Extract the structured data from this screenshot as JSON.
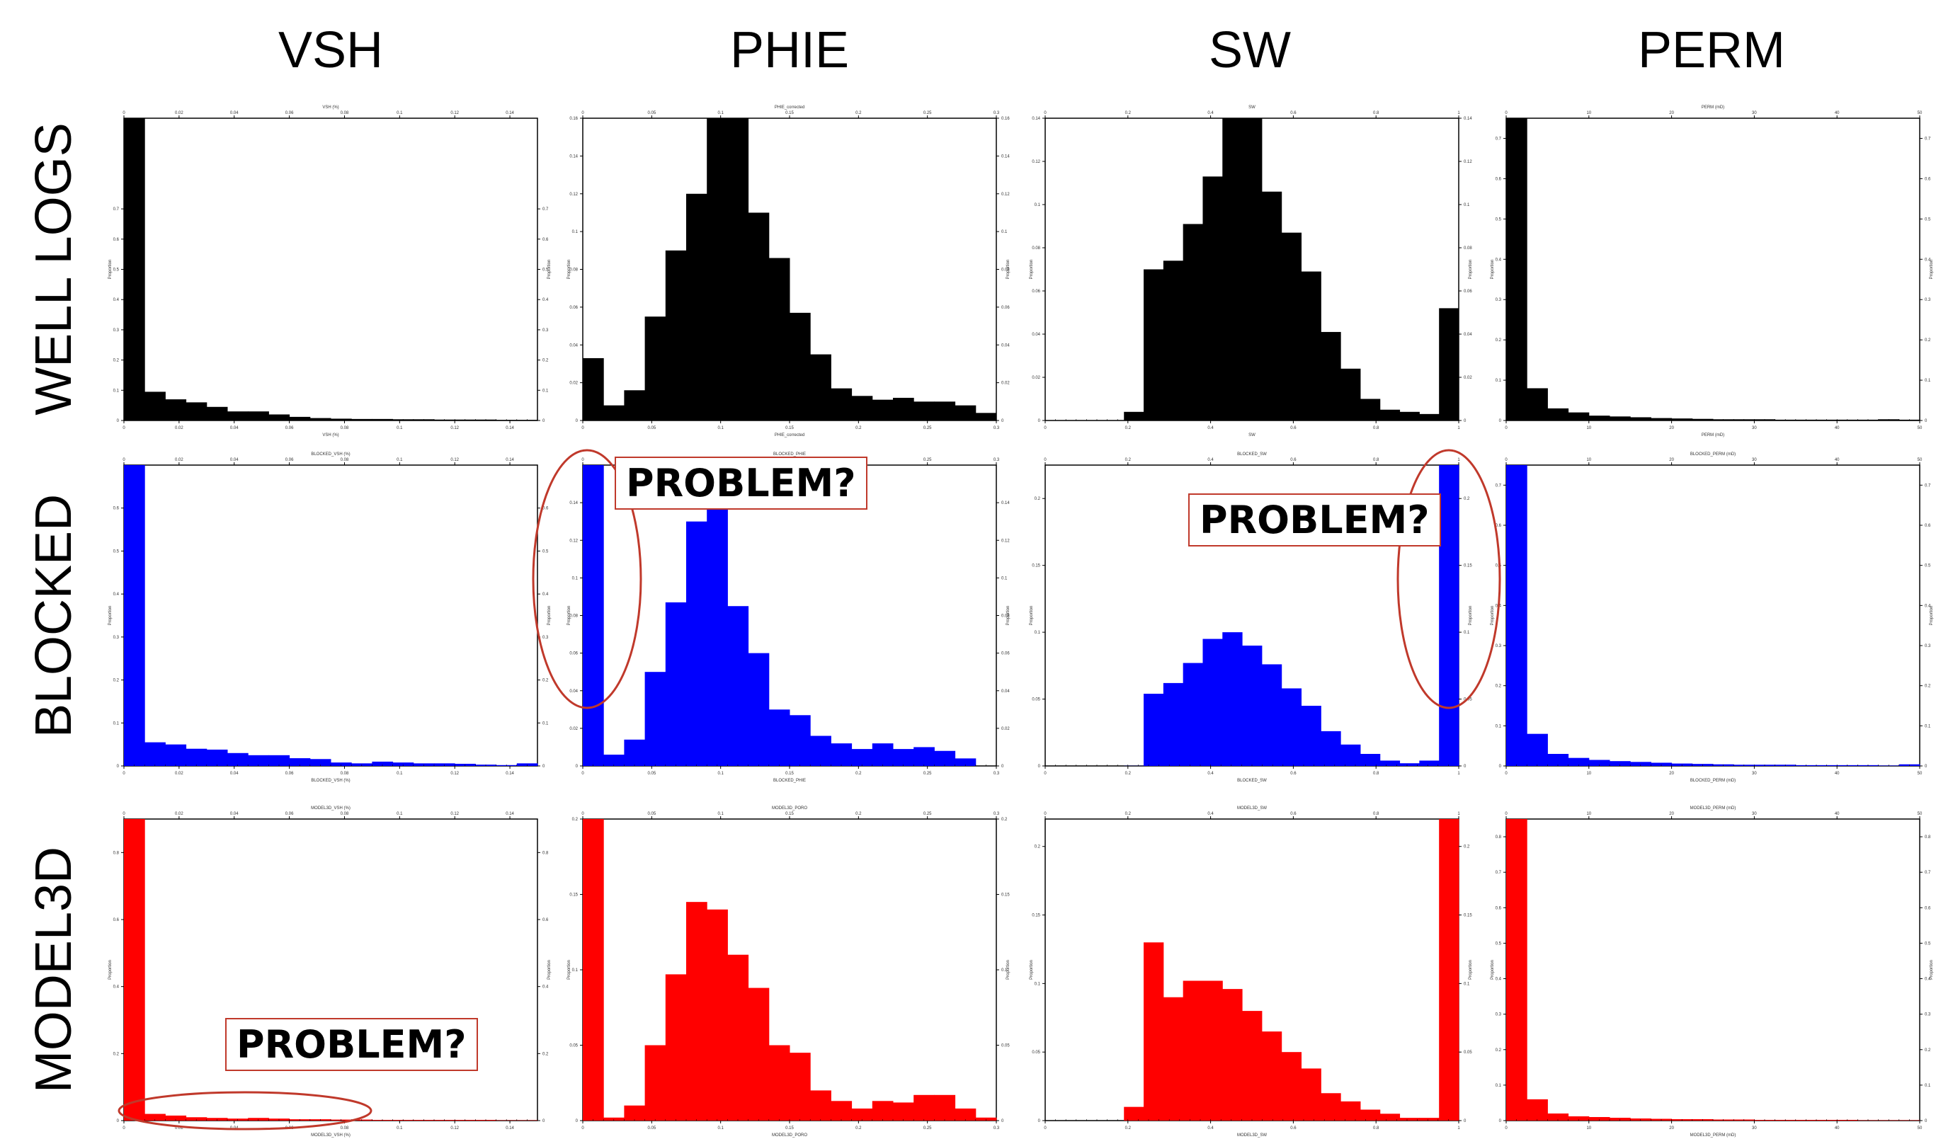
{
  "columns": [
    "VSH",
    "PHIE",
    "SW",
    "PERM"
  ],
  "rows": [
    "WELL LOGS",
    "BLOCKED",
    "MODEL3D"
  ],
  "colors": {
    "WELL LOGS": "#000000",
    "BLOCKED": "#0000ff",
    "MODEL3D": "#ff0000",
    "callout_border": "#c0392b"
  },
  "callout_text": "PROBLEM?",
  "chart_data": [
    {
      "type": "bar",
      "row": "WELL LOGS",
      "column": "VSH",
      "title": "VSH (%)",
      "xlabel": "VSH (%)",
      "ylabel": "Proportion",
      "xticks": [
        "0",
        "0.02",
        "0.04",
        "0.06",
        "0.08",
        "0.1",
        "0.12",
        "0.14"
      ],
      "xlim": [
        0,
        0.15
      ],
      "ylim": [
        0,
        1.0
      ],
      "yticks": [
        "0",
        "0.1",
        "0.2",
        "0.3",
        "0.4",
        "0.5",
        "0.6",
        "0.7"
      ],
      "values": [
        1.0,
        0.095,
        0.07,
        0.06,
        0.045,
        0.03,
        0.03,
        0.02,
        0.012,
        0.008,
        0.006,
        0.005,
        0.005,
        0.004,
        0.004,
        0.003,
        0.003,
        0.003,
        0.002,
        0.002
      ]
    },
    {
      "type": "bar",
      "row": "WELL LOGS",
      "column": "PHIE",
      "title": "PHIE_corrected",
      "xlabel": "PHIE_corrected",
      "ylabel": "Proportion",
      "xticks": [
        "0",
        "0.05",
        "0.1",
        "0.15",
        "0.2",
        "0.25",
        "0.3"
      ],
      "xlim": [
        0,
        0.3
      ],
      "ylim": [
        0,
        0.16
      ],
      "yticks": [
        "0",
        "0.02",
        "0.04",
        "0.06",
        "0.08",
        "0.1",
        "0.12",
        "0.14",
        "0.16"
      ],
      "values": [
        0.033,
        0.008,
        0.016,
        0.055,
        0.09,
        0.12,
        0.16,
        0.16,
        0.11,
        0.086,
        0.057,
        0.035,
        0.017,
        0.013,
        0.011,
        0.012,
        0.01,
        0.01,
        0.008,
        0.004
      ]
    },
    {
      "type": "bar",
      "row": "WELL LOGS",
      "column": "SW",
      "title": "SW",
      "xlabel": "SW",
      "ylabel": "Proportion",
      "xticks": [
        "0",
        "0.2",
        "0.4",
        "0.6",
        "0.8",
        "1"
      ],
      "xlim": [
        0,
        1.0
      ],
      "ylim": [
        0,
        0.14
      ],
      "yticks": [
        "0",
        "0.02",
        "0.04",
        "0.06",
        "0.08",
        "0.1",
        "0.12",
        "0.14"
      ],
      "values": [
        0,
        0,
        0,
        0,
        0.004,
        0.07,
        0.074,
        0.091,
        0.113,
        0.14,
        0.14,
        0.106,
        0.087,
        0.069,
        0.041,
        0.024,
        0.01,
        0.005,
        0.004,
        0.003,
        0.052
      ]
    },
    {
      "type": "bar",
      "row": "WELL LOGS",
      "column": "PERM",
      "title": "PERM (mD)",
      "xlabel": "PERM (mD)",
      "ylabel": "Proportion",
      "xticks": [
        "0",
        "10",
        "20",
        "30",
        "40",
        "50"
      ],
      "xlim": [
        0,
        50
      ],
      "ylim": [
        0,
        0.75
      ],
      "yticks": [
        "0",
        "0.1",
        "0.2",
        "0.3",
        "0.4",
        "0.5",
        "0.6",
        "0.7"
      ],
      "values": [
        0.75,
        0.08,
        0.03,
        0.02,
        0.012,
        0.01,
        0.008,
        0.006,
        0.005,
        0.004,
        0.003,
        0.003,
        0.003,
        0.002,
        0.002,
        0.002,
        0.002,
        0.002,
        0.003,
        0.002
      ]
    },
    {
      "type": "bar",
      "row": "BLOCKED",
      "column": "VSH",
      "title": "BLOCKED_VSH (%)",
      "xlabel": "BLOCKED_VSH (%)",
      "ylabel": "Proportion",
      "xticks": [
        "0",
        "0.02",
        "0.04",
        "0.06",
        "0.08",
        "0.1",
        "0.12",
        "0.14"
      ],
      "xlim": [
        0,
        0.15
      ],
      "ylim": [
        0,
        0.7
      ],
      "yticks": [
        "0",
        "0.1",
        "0.2",
        "0.3",
        "0.4",
        "0.5",
        "0.6"
      ],
      "values": [
        0.7,
        0.055,
        0.05,
        0.04,
        0.038,
        0.03,
        0.025,
        0.025,
        0.018,
        0.016,
        0.008,
        0.006,
        0.01,
        0.008,
        0.006,
        0.006,
        0.005,
        0.003,
        0.002,
        0.006
      ]
    },
    {
      "type": "bar",
      "row": "BLOCKED",
      "column": "PHIE",
      "title": "BLOCKED_PHIE",
      "xlabel": "BLOCKED_PHIE",
      "ylabel": "Proportion",
      "xticks": [
        "0",
        "0.05",
        "0.1",
        "0.15",
        "0.2",
        "0.25",
        "0.3"
      ],
      "xlim": [
        0,
        0.3
      ],
      "ylim": [
        0,
        0.16
      ],
      "yticks": [
        "0",
        "0.02",
        "0.04",
        "0.06",
        "0.08",
        "0.1",
        "0.12",
        "0.14"
      ],
      "values": [
        0.16,
        0.006,
        0.014,
        0.05,
        0.087,
        0.13,
        0.14,
        0.085,
        0.06,
        0.03,
        0.027,
        0.016,
        0.012,
        0.009,
        0.012,
        0.009,
        0.01,
        0.008,
        0.004,
        0
      ]
    },
    {
      "type": "bar",
      "row": "BLOCKED",
      "column": "SW",
      "title": "BLOCKED_SW",
      "xlabel": "BLOCKED_SW",
      "ylabel": "Proportion",
      "xticks": [
        "0",
        "0.2",
        "0.4",
        "0.6",
        "0.8",
        "1"
      ],
      "xlim": [
        0,
        1.0
      ],
      "ylim": [
        0,
        0.225
      ],
      "yticks": [
        "0",
        "0.05",
        "0.1",
        "0.15",
        "0.2"
      ],
      "values": [
        0,
        0,
        0,
        0,
        0.0001,
        0.054,
        0.062,
        0.077,
        0.095,
        0.1,
        0.09,
        0.076,
        0.058,
        0.045,
        0.026,
        0.016,
        0.009,
        0.004,
        0.002,
        0.004,
        0.225
      ]
    },
    {
      "type": "bar",
      "row": "BLOCKED",
      "column": "PERM",
      "title": "BLOCKED_PERM (mD)",
      "xlabel": "BLOCKED_PERM (mD)",
      "ylabel": "Proportion",
      "xticks": [
        "0",
        "10",
        "20",
        "30",
        "40",
        "50"
      ],
      "xlim": [
        0,
        50
      ],
      "ylim": [
        0,
        0.75
      ],
      "yticks": [
        "0",
        "0.1",
        "0.2",
        "0.3",
        "0.4",
        "0.5",
        "0.6",
        "0.7"
      ],
      "values": [
        0.75,
        0.08,
        0.03,
        0.02,
        0.015,
        0.012,
        0.01,
        0.008,
        0.006,
        0.005,
        0.004,
        0.003,
        0.003,
        0.003,
        0.002,
        0.002,
        0.002,
        0.002,
        0.001,
        0.004
      ]
    },
    {
      "type": "bar",
      "row": "MODEL3D",
      "column": "VSH",
      "title": "MODEL3D_VSH (%)",
      "xlabel": "MODEL3D_VSH (%)",
      "ylabel": "Proportion",
      "xticks": [
        "0",
        "0.02",
        "0.04",
        "0.06",
        "0.08",
        "0.1",
        "0.12",
        "0.14"
      ],
      "xlim": [
        0,
        0.15
      ],
      "ylim": [
        0,
        0.9
      ],
      "yticks": [
        "0",
        "0.2",
        "0.4",
        "0.6",
        "0.8"
      ],
      "values": [
        0.9,
        0.02,
        0.015,
        0.01,
        0.008,
        0.006,
        0.008,
        0.006,
        0.004,
        0.004,
        0.003,
        0.003,
        0.002,
        0.002,
        0.002,
        0.002,
        0.002,
        0.002,
        0.001,
        0.001
      ]
    },
    {
      "type": "bar",
      "row": "MODEL3D",
      "column": "PHIE",
      "title": "MODEL3D_PORO",
      "xlabel": "MODEL3D_PORO",
      "ylabel": "Proportion",
      "xticks": [
        "0",
        "0.05",
        "0.1",
        "0.15",
        "0.2",
        "0.25",
        "0.3"
      ],
      "xlim": [
        0,
        0.3
      ],
      "ylim": [
        0,
        0.2
      ],
      "yticks": [
        "0",
        "0.05",
        "0.1",
        "0.15",
        "0.2"
      ],
      "values": [
        0.2,
        0.002,
        0.01,
        0.05,
        0.097,
        0.145,
        0.14,
        0.11,
        0.088,
        0.05,
        0.045,
        0.02,
        0.013,
        0.008,
        0.013,
        0.012,
        0.017,
        0.017,
        0.008,
        0.002
      ]
    },
    {
      "type": "bar",
      "row": "MODEL3D",
      "column": "SW",
      "title": "MODEL3D_SW",
      "xlabel": "MODEL3D_SW",
      "ylabel": "Proportion",
      "xticks": [
        "0",
        "0.2",
        "0.4",
        "0.6",
        "0.8",
        "1"
      ],
      "xlim": [
        0,
        1.0
      ],
      "ylim": [
        0,
        0.22
      ],
      "yticks": [
        "0",
        "0.05",
        "0.1",
        "0.15",
        "0.2"
      ],
      "values": [
        0,
        0,
        0,
        0,
        0.01,
        0.13,
        0.09,
        0.102,
        0.102,
        0.096,
        0.08,
        0.065,
        0.05,
        0.038,
        0.02,
        0.014,
        0.008,
        0.005,
        0.002,
        0.002,
        0.22
      ]
    },
    {
      "type": "bar",
      "row": "MODEL3D",
      "column": "PERM",
      "title": "MODEL3D_PERM (mD)",
      "xlabel": "MODEL3D_PERM (mD)",
      "ylabel": "Proportion",
      "xticks": [
        "0",
        "10",
        "20",
        "30",
        "40",
        "50"
      ],
      "xlim": [
        0,
        50
      ],
      "ylim": [
        0,
        0.85
      ],
      "yticks": [
        "0",
        "0.1",
        "0.2",
        "0.3",
        "0.4",
        "0.5",
        "0.6",
        "0.7",
        "0.8"
      ],
      "values": [
        0.85,
        0.06,
        0.02,
        0.012,
        0.01,
        0.008,
        0.006,
        0.005,
        0.004,
        0.004,
        0.003,
        0.003,
        0.002,
        0.002,
        0.002,
        0.002,
        0.002,
        0.001,
        0.001,
        0.001
      ]
    }
  ]
}
